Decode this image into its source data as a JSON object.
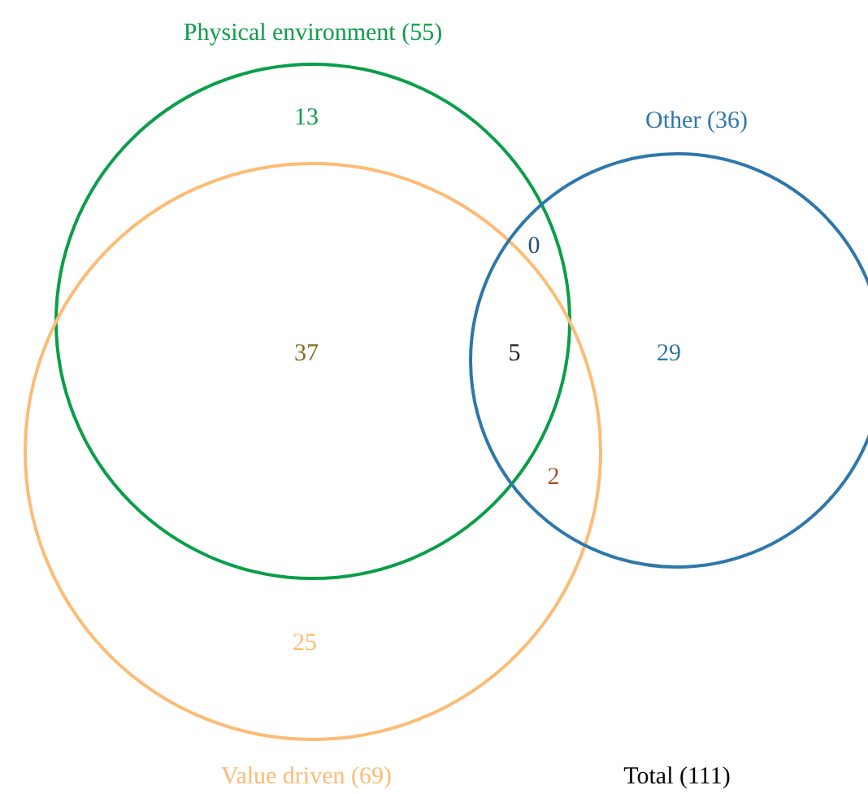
{
  "chart_data": {
    "type": "other",
    "categories": [
      null,
      null,
      null,
      null,
      null,
      null,
      null
    ],
    "values": [
      13,
      0,
      37,
      5,
      29,
      2,
      25
    ],
    "colors": [
      "#0a9e48",
      "#1f4e79",
      "#8c6d1f",
      "#222222",
      "#2e77ab",
      "#a0522d",
      "#fdbb74"
    ],
    "data_labels": true,
    "annotations": [
      "Physical environment (55)",
      "Value driven (69)",
      "Other (36)",
      "Total (111)"
    ]
  }
}
